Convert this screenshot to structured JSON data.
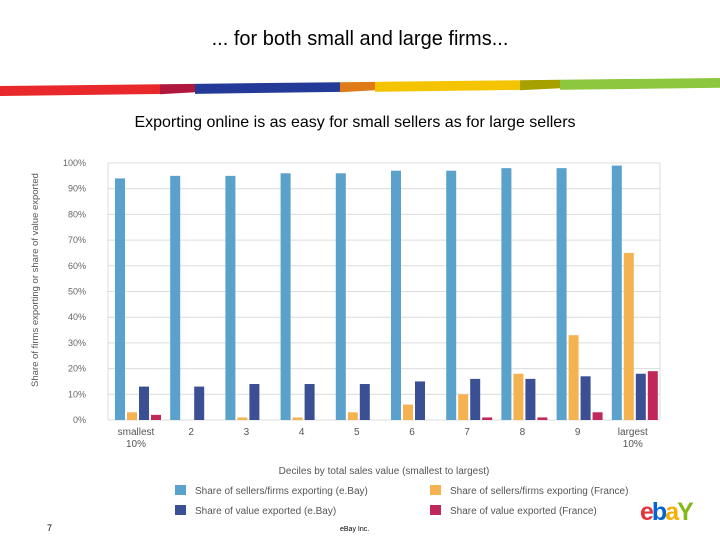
{
  "slide": {
    "title": "... for both small and large firms...",
    "subtitle": "Exporting online is as easy for small sellers as for large sellers",
    "page_number": "7",
    "company": "eBay Inc.",
    "logo_letters": [
      "e",
      "b",
      "a",
      "Y"
    ],
    "logo_colors": [
      "#e53238",
      "#0064d2",
      "#f5af02",
      "#86b817"
    ],
    "stripe_colors": [
      "#e8282b",
      "#b0173e",
      "#233a98",
      "#e07b1a",
      "#f5c400",
      "#a6a000",
      "#8dc63f"
    ]
  },
  "chart_data": {
    "type": "bar",
    "title": "Exporting online is as easy for small sellers as for large sellers",
    "xlabel": "Deciles by total sales value (smallest to largest)",
    "ylabel": "Share of firms exporting or share of value exported",
    "ylim": [
      0,
      100
    ],
    "yticks": [
      "0%",
      "10%",
      "20%",
      "30%",
      "40%",
      "50%",
      "60%",
      "70%",
      "80%",
      "90%",
      "100%"
    ],
    "categories": [
      "smallest",
      "2",
      "3",
      "4",
      "5",
      "6",
      "7",
      "8",
      "9",
      "largest"
    ],
    "category_sublabels": [
      "10%",
      "",
      "",
      "",
      "",
      "",
      "",
      "",
      "",
      "10%"
    ],
    "series": [
      {
        "name": "Share of sellers/firms exporting (e.Bay)",
        "color": "#5aa2cc",
        "values": [
          94,
          95,
          95,
          96,
          96,
          97,
          97,
          98,
          98,
          99
        ]
      },
      {
        "name": "Share of sellers/firms exporting (France)",
        "color": "#f4b350",
        "values": [
          3,
          0,
          1,
          1,
          3,
          6,
          10,
          18,
          33,
          65
        ]
      },
      {
        "name": "Share of value exported (e.Bay)",
        "color": "#3b4f94",
        "values": [
          13,
          13,
          14,
          14,
          14,
          15,
          16,
          16,
          17,
          18
        ]
      },
      {
        "name": "Share of value exported (France)",
        "color": "#c0285a",
        "values": [
          2,
          0,
          0,
          0,
          0,
          0,
          1,
          1,
          3,
          19
        ]
      }
    ],
    "legend_position": "bottom",
    "grid": true
  }
}
